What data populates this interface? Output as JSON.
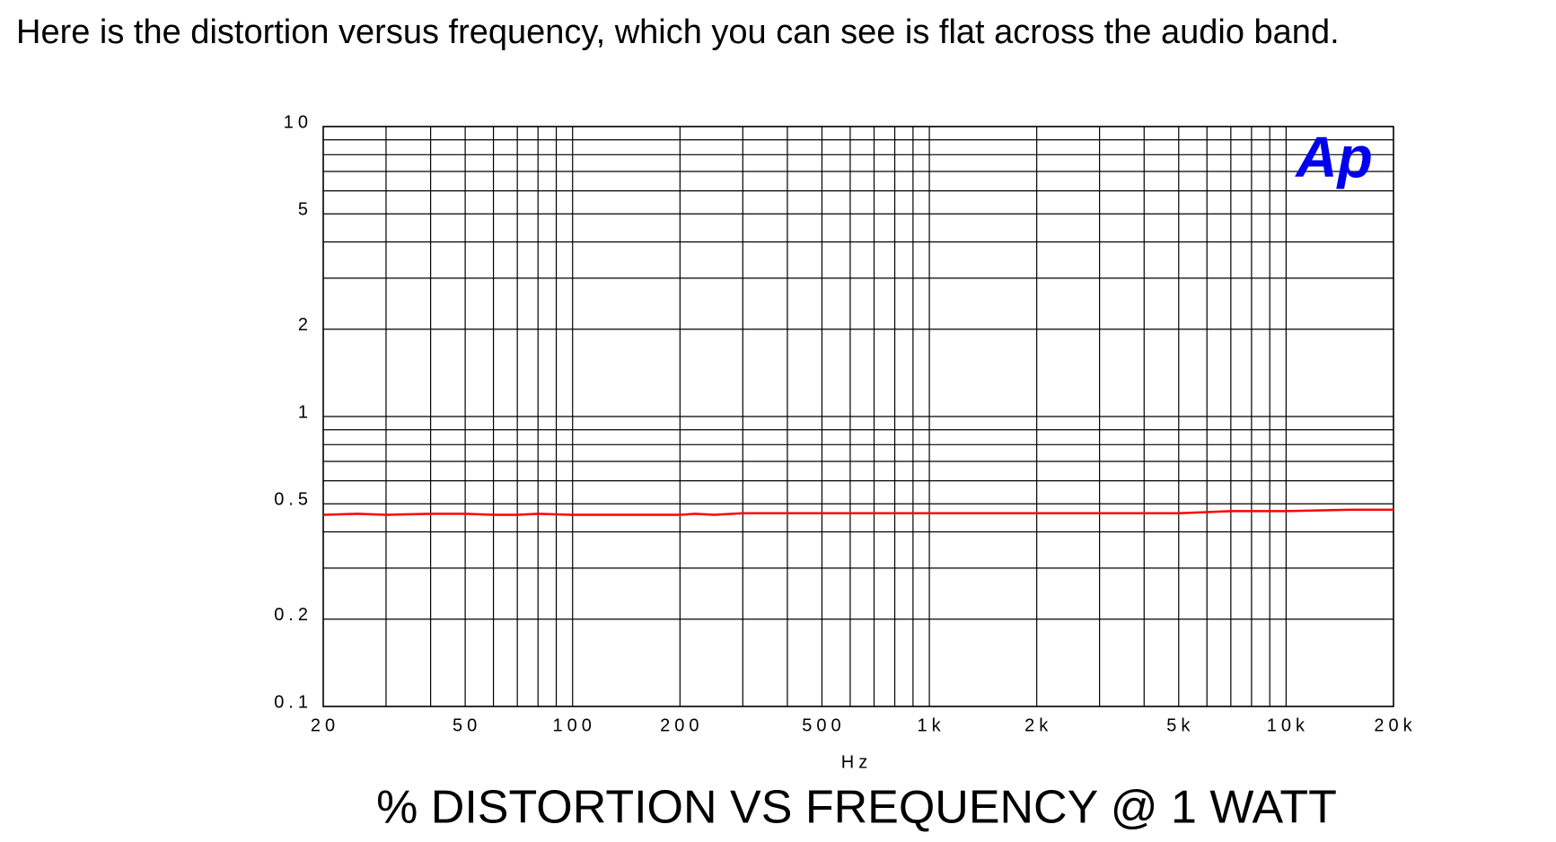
{
  "intro": "Here is the distortion versus frequency, which you can see is flat across the audio band.",
  "chart_data": {
    "type": "line",
    "title": "% DISTORTION VS FREQUENCY @ 1 WATT",
    "x_label": "Hz",
    "logo": "Ap",
    "x_log": true,
    "y_log": true,
    "grid": true,
    "xlim": [
      20,
      20000
    ],
    "ylim": [
      0.1,
      10
    ],
    "xticks": [
      20,
      50,
      100,
      200,
      500,
      {
        "value": 1000,
        "label": "1k"
      },
      {
        "value": 2000,
        "label": "2k"
      },
      {
        "value": 5000,
        "label": "5k"
      },
      {
        "value": 10000,
        "label": "10k"
      },
      {
        "value": 20000,
        "label": "20k"
      }
    ],
    "xminorticks": [
      30,
      40,
      60,
      70,
      80,
      90,
      300,
      400,
      600,
      700,
      800,
      900,
      3000,
      4000,
      6000,
      7000,
      8000,
      9000
    ],
    "yticks": [
      0.1,
      0.2,
      0.5,
      1,
      2,
      5,
      10
    ],
    "yminorticks": [
      0.3,
      0.4,
      0.6,
      0.7,
      0.8,
      0.9,
      3,
      4,
      6,
      7,
      8,
      9
    ],
    "series": [
      {
        "name": "Distortion",
        "color": "#ff0000",
        "x": [
          20,
          25,
          30,
          40,
          50,
          60,
          70,
          80,
          100,
          200,
          220,
          250,
          300,
          500,
          1000,
          2000,
          5000,
          6000,
          7000,
          10000,
          15000,
          20000
        ],
        "values": [
          0.458,
          0.462,
          0.458,
          0.462,
          0.462,
          0.458,
          0.458,
          0.462,
          0.458,
          0.458,
          0.462,
          0.458,
          0.464,
          0.464,
          0.464,
          0.464,
          0.464,
          0.468,
          0.472,
          0.472,
          0.477,
          0.477
        ]
      }
    ]
  }
}
